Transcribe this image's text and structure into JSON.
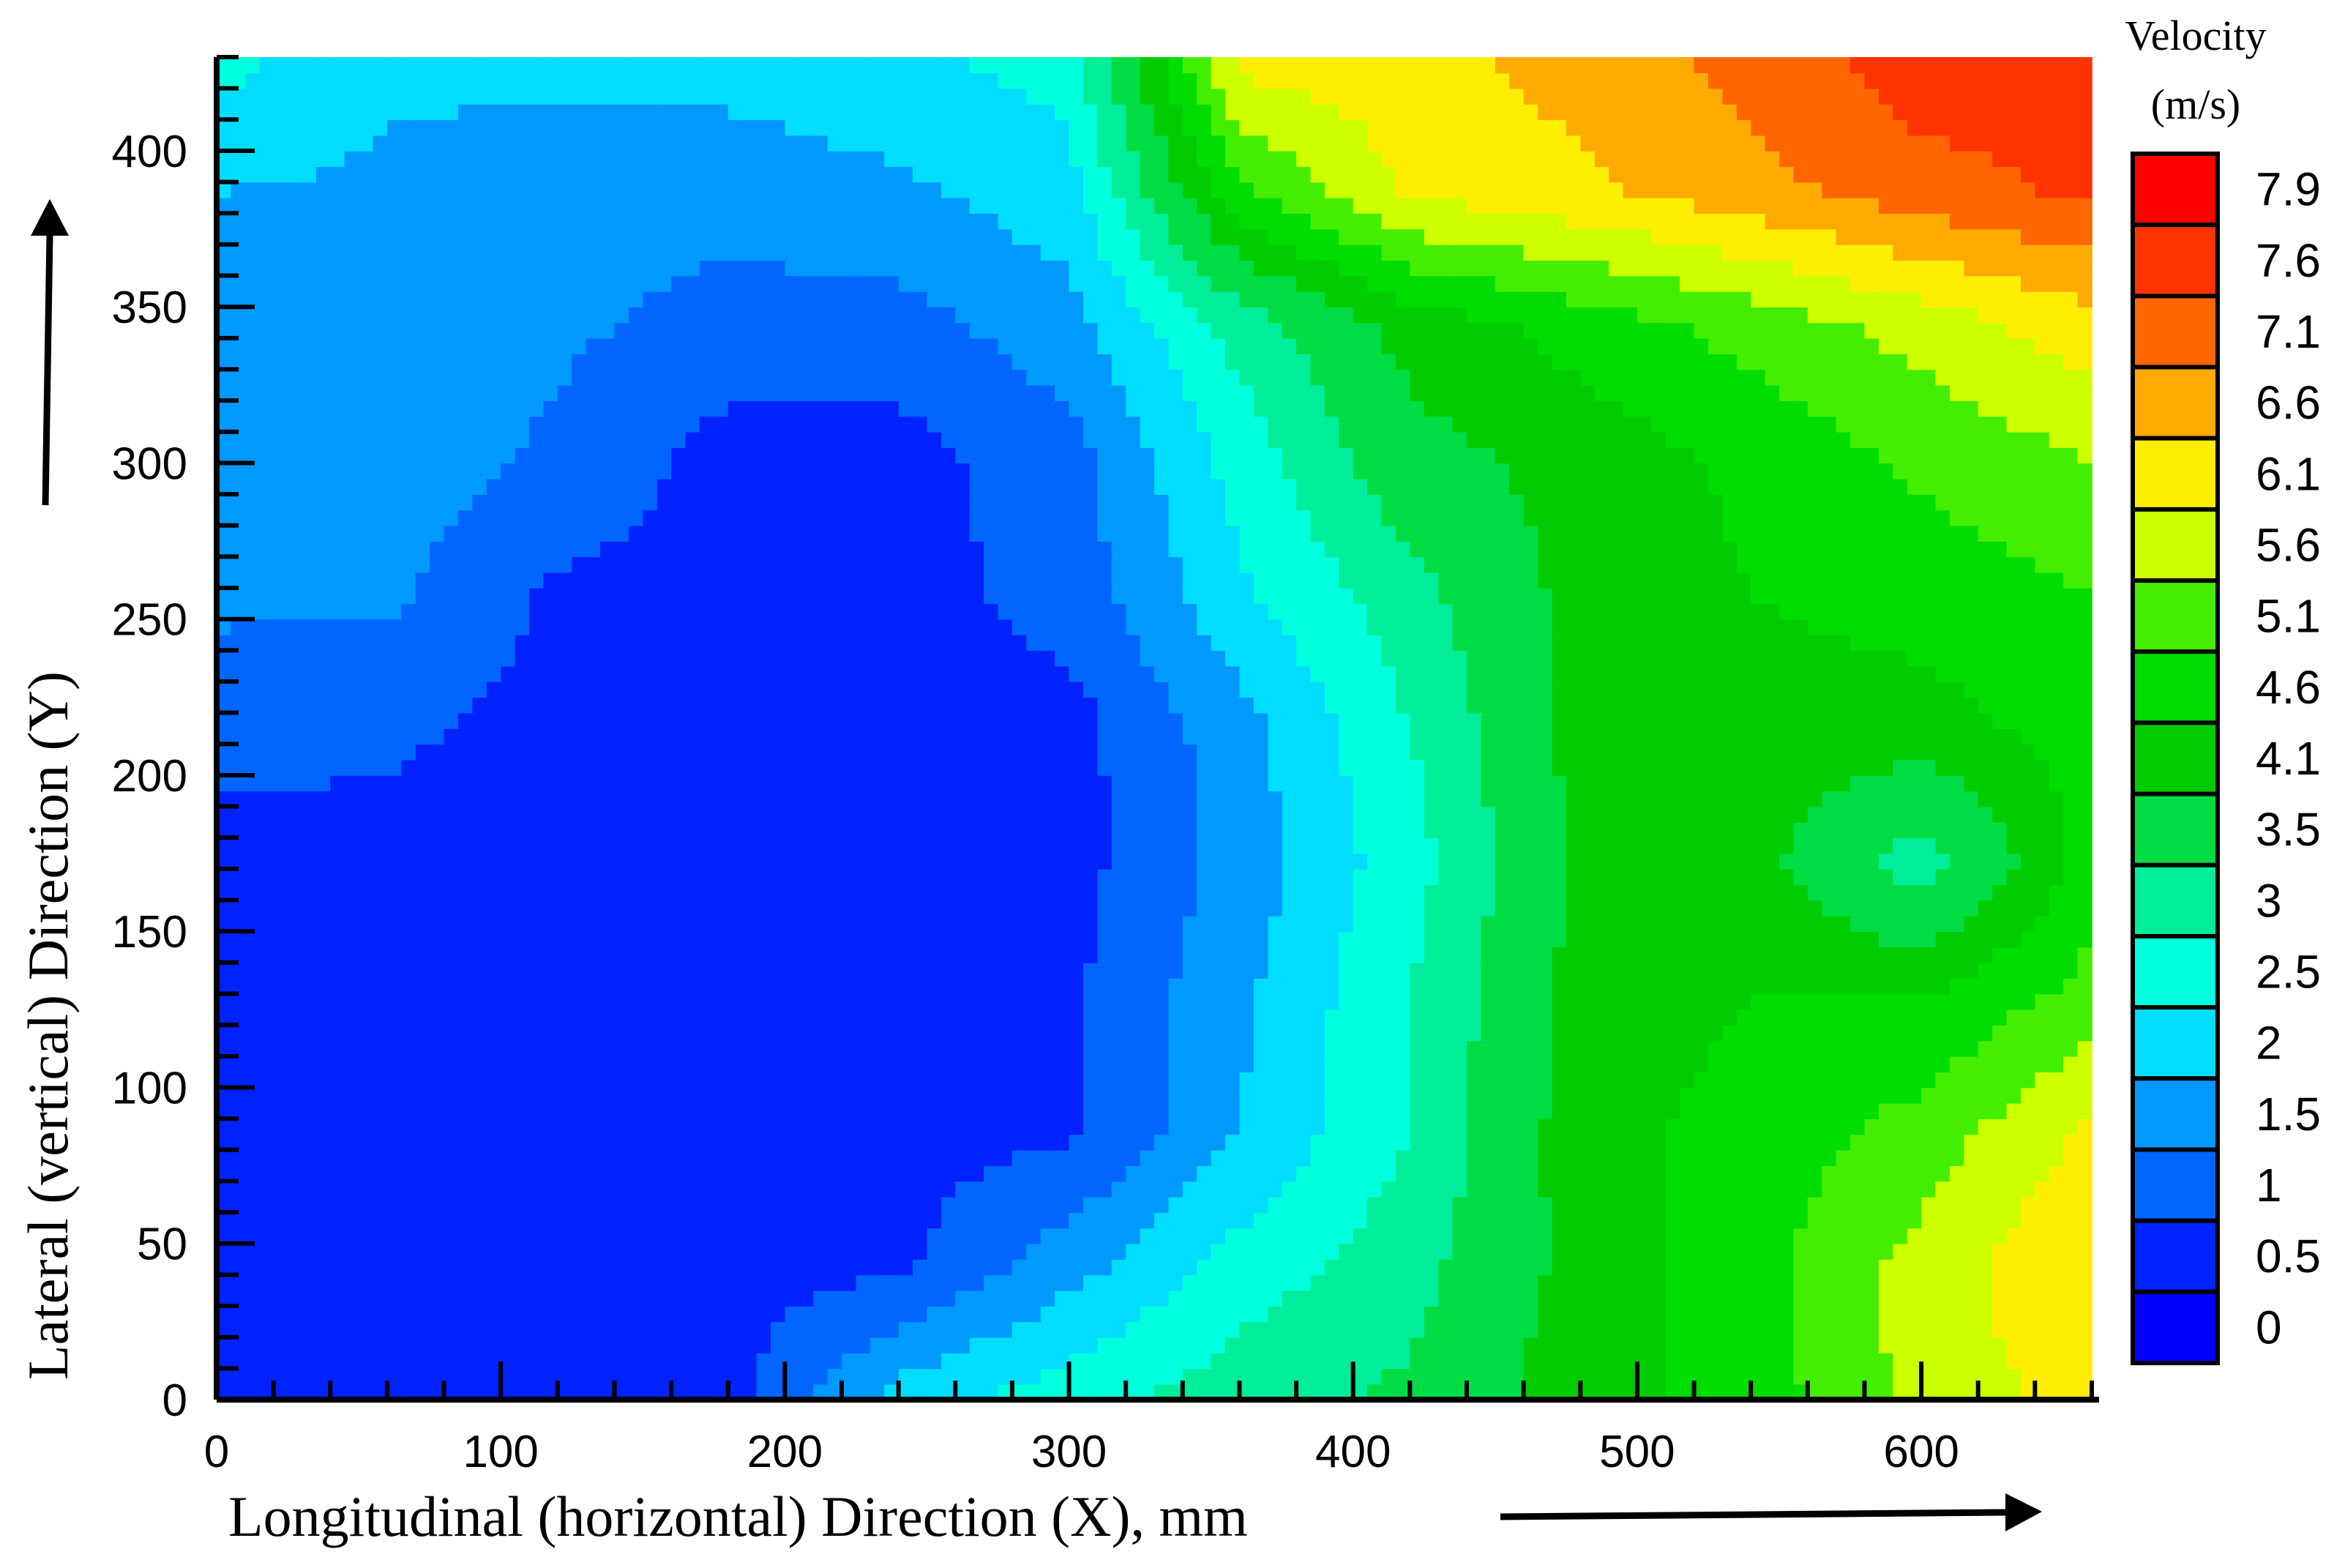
{
  "chart_data": {
    "type": "heatmap",
    "title": "",
    "xlabel": "Longitudinal (horizontal) Direction  (X), mm",
    "ylabel": "Lateral (vertical) Direction (Y)",
    "xlim": [
      0,
      660
    ],
    "ylim": [
      0,
      430
    ],
    "x_ticks": [
      0,
      100,
      200,
      300,
      400,
      500,
      600
    ],
    "y_ticks": [
      0,
      50,
      100,
      150,
      200,
      250,
      300,
      350,
      400
    ],
    "grid": false,
    "legend": {
      "title_line1": "Velocity",
      "title_line2": "(m/s)",
      "placement": "right",
      "levels": [
        {
          "label": "0",
          "color": "#0000ff"
        },
        {
          "label": "0.5",
          "color": "#0022ff"
        },
        {
          "label": "1",
          "color": "#0066ff"
        },
        {
          "label": "1.5",
          "color": "#0099ff"
        },
        {
          "label": "2",
          "color": "#00ddff"
        },
        {
          "label": "2.5",
          "color": "#00ffdd"
        },
        {
          "label": "3",
          "color": "#00ee99"
        },
        {
          "label": "3.5",
          "color": "#00dd44"
        },
        {
          "label": "4.1",
          "color": "#00cc00"
        },
        {
          "label": "4.6",
          "color": "#00dd00"
        },
        {
          "label": "5.1",
          "color": "#44ee00"
        },
        {
          "label": "5.6",
          "color": "#ccff00"
        },
        {
          "label": "6.1",
          "color": "#ffee00"
        },
        {
          "label": "6.6",
          "color": "#ffaa00"
        },
        {
          "label": "7.1",
          "color": "#ff6600"
        },
        {
          "label": "7.6",
          "color": "#ff3300"
        },
        {
          "label": "7.9",
          "color": "#ff0000"
        }
      ]
    },
    "grid_x": [
      0,
      60,
      120,
      180,
      240,
      300,
      360,
      420,
      480,
      540,
      600,
      660
    ],
    "grid_y": [
      0,
      43,
      86,
      129,
      172,
      215,
      258,
      301,
      344,
      387,
      430
    ],
    "values": [
      [
        0.5,
        0.5,
        0.7,
        0.8,
        2.2,
        2.8,
        3.3,
        3.6,
        4.4,
        4.8,
        5.8,
        6.3
      ],
      [
        0.8,
        0.8,
        0.8,
        0.8,
        0.9,
        1.8,
        2.7,
        3.3,
        4.3,
        4.9,
        5.8,
        6.6
      ],
      [
        0.8,
        0.8,
        0.8,
        0.8,
        0.8,
        0.9,
        2.0,
        3.0,
        4.4,
        4.8,
        5.3,
        6.2
      ],
      [
        0.8,
        0.8,
        0.8,
        0.8,
        0.8,
        0.9,
        1.9,
        3.0,
        4.3,
        4.6,
        4.6,
        5.3
      ],
      [
        0.8,
        0.8,
        0.8,
        0.8,
        0.8,
        0.8,
        1.7,
        2.8,
        4.2,
        4.3,
        3.2,
        4.8
      ],
      [
        1.2,
        1.1,
        0.8,
        0.8,
        0.8,
        0.8,
        1.8,
        3.0,
        4.3,
        4.4,
        4.4,
        4.8
      ],
      [
        1.6,
        1.6,
        0.9,
        0.8,
        0.8,
        1.2,
        2.4,
        3.3,
        4.3,
        4.6,
        4.8,
        5.1
      ],
      [
        1.8,
        1.8,
        1.4,
        0.8,
        0.8,
        1.3,
        2.7,
        3.9,
        4.3,
        4.7,
        5.2,
        5.6
      ],
      [
        1.8,
        1.8,
        1.6,
        1.3,
        1.3,
        1.8,
        3.2,
        4.3,
        4.8,
        5.3,
        5.8,
        6.4
      ],
      [
        2.0,
        1.9,
        1.8,
        1.7,
        1.9,
        2.3,
        5.0,
        6.2,
        6.5,
        6.9,
        7.4,
        7.7
      ],
      [
        2.7,
        2.1,
        2.1,
        2.2,
        2.4,
        2.7,
        6.3,
        6.4,
        6.8,
        7.3,
        7.9,
        7.8
      ]
    ]
  }
}
